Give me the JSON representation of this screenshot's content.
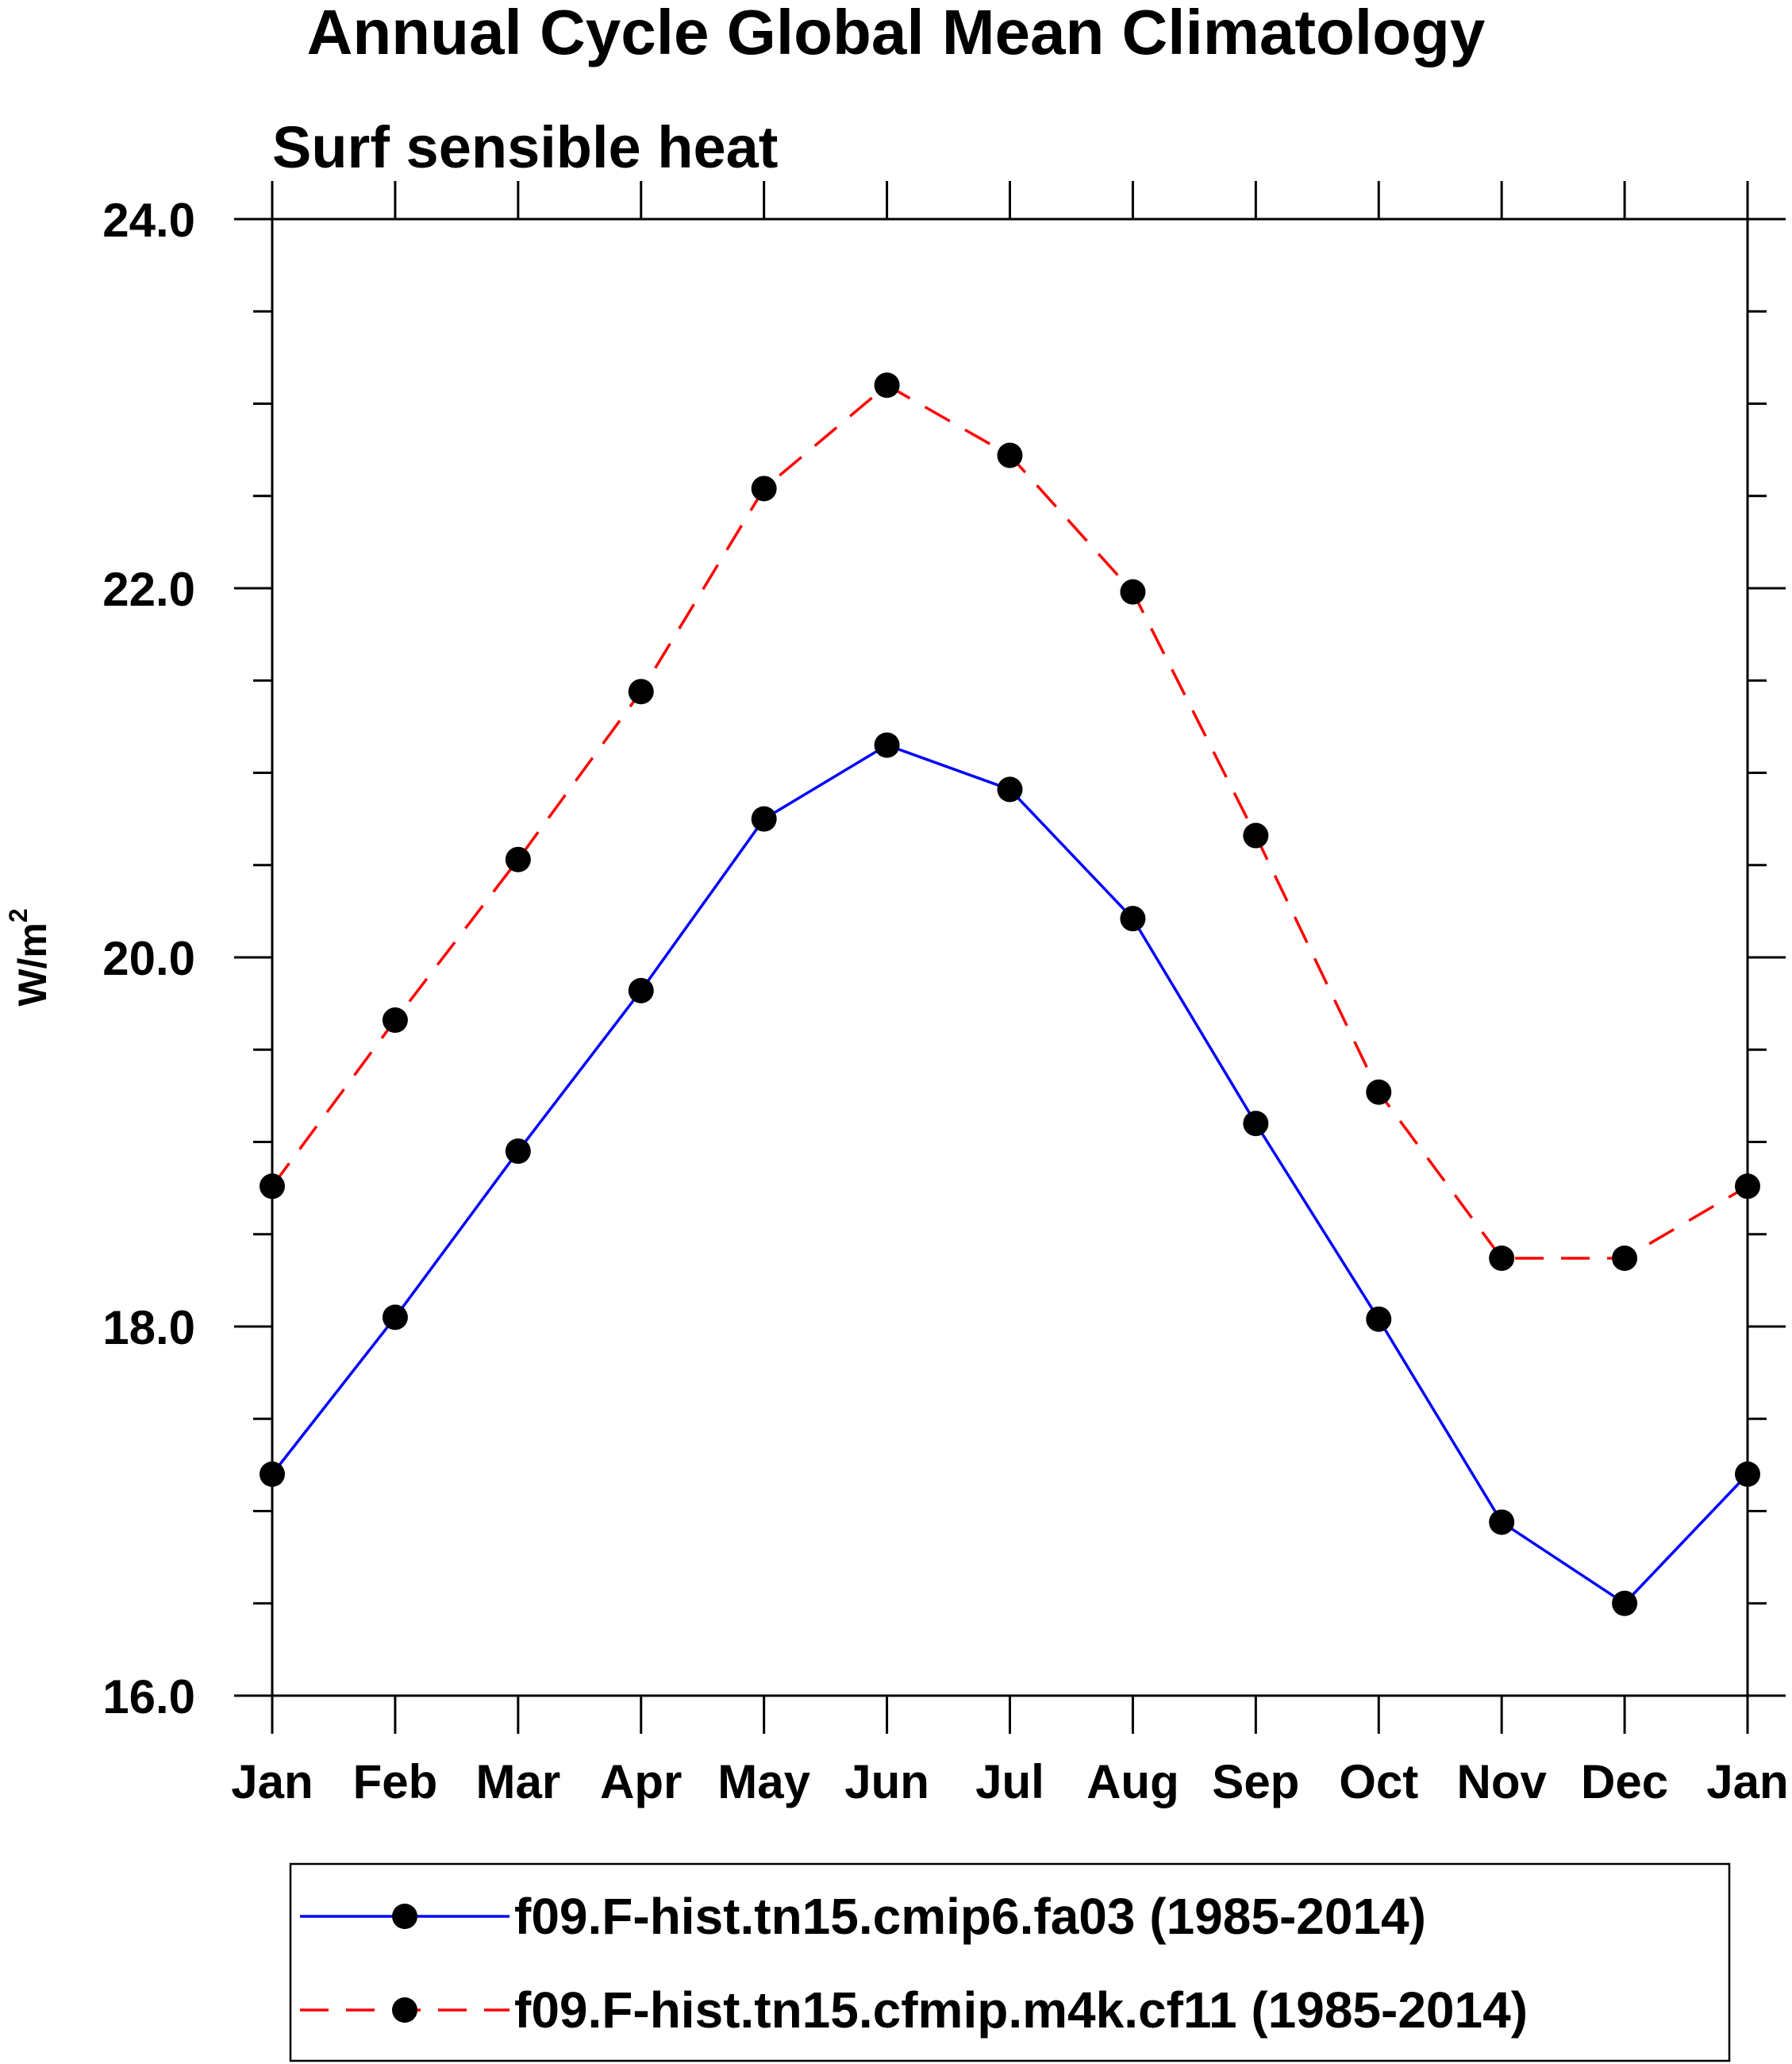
{
  "chart_data": {
    "type": "line",
    "title": "Annual Cycle Global Mean Climatology",
    "subtitle": "Surf sensible heat",
    "ylabel": "W/m",
    "ylabel_superscript": "2",
    "xlabel": "",
    "categories": [
      "Jan",
      "Feb",
      "Mar",
      "Apr",
      "May",
      "Jun",
      "Jul",
      "Aug",
      "Sep",
      "Oct",
      "Nov",
      "Dec",
      "Jan"
    ],
    "ylim": [
      16.0,
      24.0
    ],
    "yticks": [
      "16.0",
      "18.0",
      "20.0",
      "22.0",
      "24.0"
    ],
    "ytick_values": [
      16,
      18,
      20,
      22,
      24
    ],
    "series": [
      {
        "name": "f09.F-hist.tn15.cmip6.fa03 (1985-2014)",
        "color": "#0000ff",
        "dash": "solid",
        "values": [
          17.2,
          18.05,
          18.95,
          19.82,
          20.75,
          21.15,
          20.91,
          20.21,
          19.1,
          18.04,
          16.94,
          16.5,
          17.2
        ]
      },
      {
        "name": "f09.F-hist.tn15.cfmip.m4k.cf11 (1985-2014)",
        "color": "#ff0000",
        "dash": "dashed",
        "values": [
          18.76,
          19.66,
          20.53,
          21.44,
          22.54,
          23.1,
          22.72,
          21.98,
          20.66,
          19.27,
          18.37,
          18.37,
          18.76
        ]
      }
    ],
    "marker_color": "#000000",
    "legend_position": "bottom"
  }
}
